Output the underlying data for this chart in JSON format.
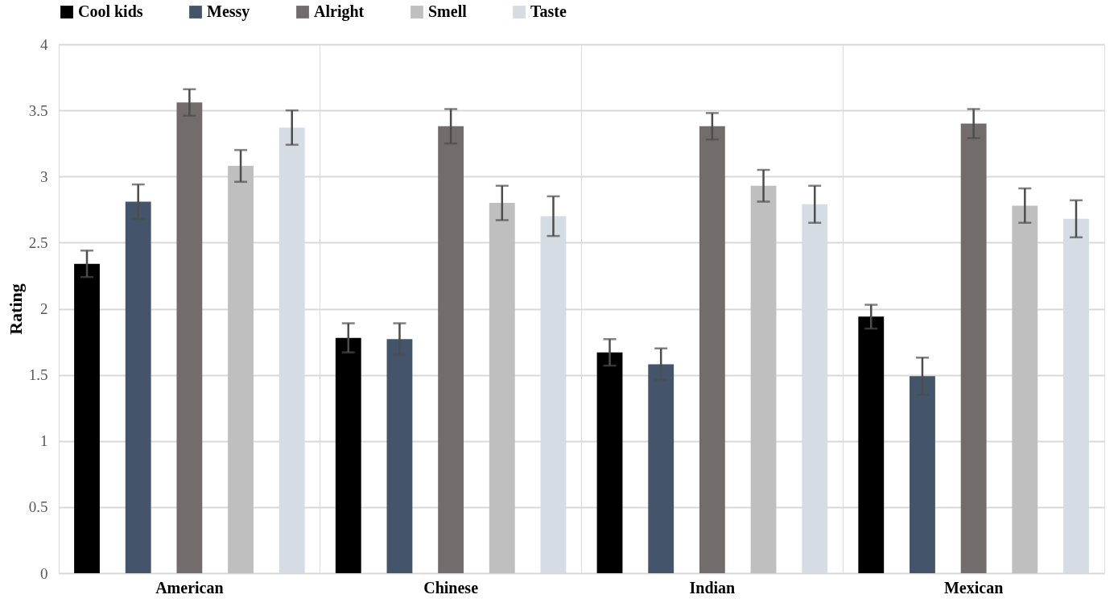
{
  "chart_data": {
    "type": "bar",
    "ylabel": "Rating",
    "categories": [
      "American",
      "Chinese",
      "Indian",
      "Mexican"
    ],
    "series": [
      {
        "name": "Cool kids",
        "color": "#000000",
        "values": [
          2.34,
          1.78,
          1.67,
          1.94
        ],
        "errors": [
          0.1,
          0.11,
          0.1,
          0.09
        ]
      },
      {
        "name": "Messy",
        "color": "#44546a",
        "values": [
          2.81,
          1.77,
          1.58,
          1.49
        ],
        "errors": [
          0.13,
          0.12,
          0.12,
          0.14
        ]
      },
      {
        "name": "Alright",
        "color": "#726d6c",
        "values": [
          3.56,
          3.38,
          3.38,
          3.4
        ],
        "errors": [
          0.1,
          0.13,
          0.1,
          0.11
        ]
      },
      {
        "name": "Smell",
        "color": "#bfbfbf",
        "values": [
          3.08,
          2.8,
          2.93,
          2.78
        ],
        "errors": [
          0.12,
          0.13,
          0.12,
          0.13
        ]
      },
      {
        "name": "Taste",
        "color": "#d6dce4",
        "values": [
          3.37,
          2.7,
          2.79,
          2.68
        ],
        "errors": [
          0.13,
          0.15,
          0.14,
          0.14
        ]
      }
    ],
    "ylim": [
      0,
      4
    ],
    "yticks": [
      0,
      0.5,
      1,
      1.5,
      2,
      2.5,
      3,
      3.5,
      4
    ],
    "grid": true,
    "legend": "top"
  }
}
